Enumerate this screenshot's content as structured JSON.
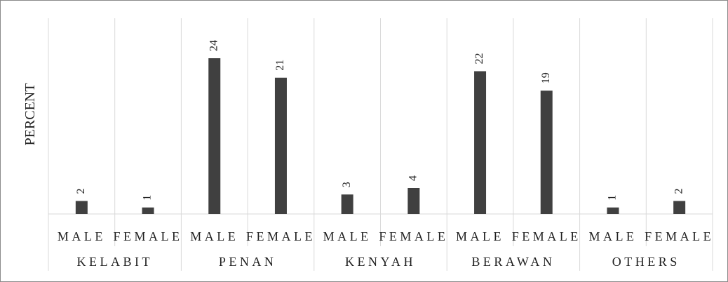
{
  "chart_data": {
    "type": "bar",
    "title": "",
    "xlabel": "",
    "ylabel": "PERCENT",
    "groups": [
      "KELABIT",
      "PENAN",
      "KENYAH",
      "BERAWAN",
      "OTHERS"
    ],
    "categories": [
      "MALE",
      "FEMALE",
      "MALE",
      "FEMALE",
      "MALE",
      "FEMALE",
      "MALE",
      "FEMALE",
      "MALE",
      "FEMALE"
    ],
    "values": [
      2,
      1,
      24,
      21,
      3,
      4,
      22,
      19,
      1,
      2
    ],
    "ylim": [
      0,
      24
    ],
    "grid": true,
    "legend": "none",
    "data_labels": true,
    "bar_color": "#404040",
    "grid_color": "#d9d9d9"
  }
}
